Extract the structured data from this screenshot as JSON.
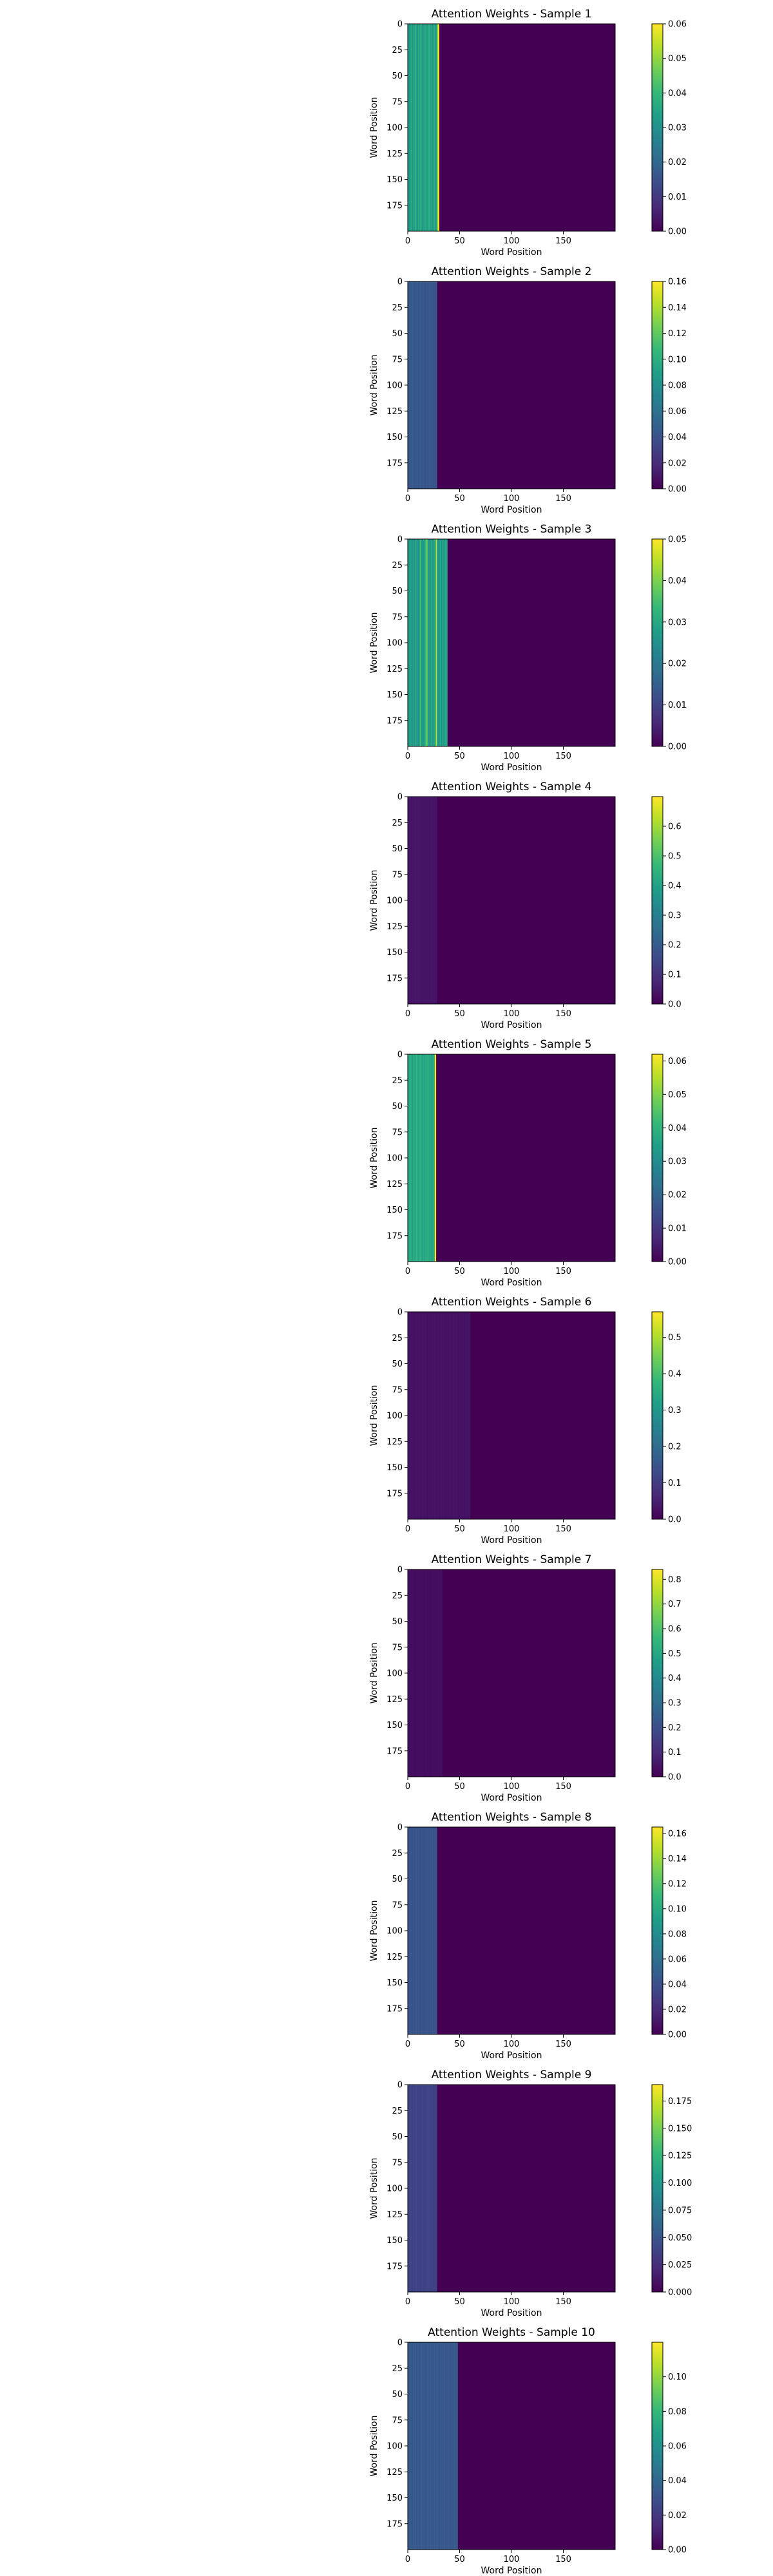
{
  "figure": {
    "colormap": "viridis",
    "colors": {
      "viridis": [
        "#440154",
        "#482878",
        "#3e4989",
        "#31688e",
        "#26828e",
        "#1f9e89",
        "#35b779",
        "#6ece58",
        "#b5de2b",
        "#fde725"
      ],
      "background": "#ffffff",
      "axis": "#000000"
    }
  },
  "chart_data": [
    {
      "type": "heatmap",
      "title": "Attention Weights - Sample 1",
      "xlabel": "Word Position",
      "ylabel": "Word Position",
      "xlim": [
        0,
        200
      ],
      "ylim": [
        200,
        0
      ],
      "xticks": [
        0,
        50,
        100,
        150
      ],
      "yticks": [
        0,
        25,
        50,
        75,
        100,
        125,
        150,
        175
      ],
      "colorbar": {
        "min": 0,
        "max": 0.06,
        "ticks": [
          "0.00",
          "0.01",
          "0.02",
          "0.03",
          "0.04",
          "0.05",
          "0.06"
        ]
      },
      "active_columns": 30,
      "column_weights": [
        0.035,
        0.03,
        0.033,
        0.038,
        0.03,
        0.036,
        0.032,
        0.04,
        0.034,
        0.031,
        0.037,
        0.033,
        0.039,
        0.035,
        0.03,
        0.036,
        0.034,
        0.038,
        0.032,
        0.035,
        0.04,
        0.033,
        0.036,
        0.03,
        0.034,
        0.037,
        0.031,
        0.035,
        0.045,
        0.06
      ]
    },
    {
      "type": "heatmap",
      "title": "Attention Weights - Sample 2",
      "xlabel": "Word Position",
      "ylabel": "Word Position",
      "xlim": [
        0,
        200
      ],
      "ylim": [
        200,
        0
      ],
      "xticks": [
        0,
        50,
        100,
        150
      ],
      "yticks": [
        0,
        25,
        50,
        75,
        100,
        125,
        150,
        175
      ],
      "colorbar": {
        "min": 0,
        "max": 0.16,
        "ticks": [
          "0.00",
          "0.02",
          "0.04",
          "0.06",
          "0.08",
          "0.10",
          "0.12",
          "0.14",
          "0.16"
        ]
      },
      "active_columns": 28,
      "column_weights": [
        0.045,
        0.04,
        0.048,
        0.042,
        0.05,
        0.044,
        0.04,
        0.046,
        0.043,
        0.047,
        0.041,
        0.045,
        0.05,
        0.042,
        0.044,
        0.046,
        0.04,
        0.043,
        0.045,
        0.041,
        0.044,
        0.046,
        0.042,
        0.045,
        0.04,
        0.043,
        0.041,
        0.044
      ]
    },
    {
      "type": "heatmap",
      "title": "Attention Weights - Sample 3",
      "xlabel": "Word Position",
      "ylabel": "Word Position",
      "xlim": [
        0,
        200
      ],
      "ylim": [
        200,
        0
      ],
      "xticks": [
        0,
        50,
        100,
        150
      ],
      "yticks": [
        0,
        25,
        50,
        75,
        100,
        125,
        150,
        175
      ],
      "colorbar": {
        "min": 0,
        "max": 0.05,
        "ticks": [
          "0.00",
          "0.01",
          "0.02",
          "0.03",
          "0.04",
          "0.05"
        ]
      },
      "active_columns": 38,
      "column_weights": [
        0.028,
        0.025,
        0.03,
        0.027,
        0.026,
        0.029,
        0.024,
        0.031,
        0.027,
        0.028,
        0.025,
        0.03,
        0.035,
        0.027,
        0.026,
        0.028,
        0.03,
        0.033,
        0.04,
        0.029,
        0.027,
        0.025,
        0.03,
        0.028,
        0.026,
        0.031,
        0.027,
        0.045,
        0.029,
        0.025,
        0.028,
        0.03,
        0.026,
        0.029,
        0.027,
        0.028,
        0.03,
        0.029
      ]
    },
    {
      "type": "heatmap",
      "title": "Attention Weights - Sample 4",
      "xlabel": "Word Position",
      "ylabel": "Word Position",
      "xlim": [
        0,
        200
      ],
      "ylim": [
        200,
        0
      ],
      "xticks": [
        0,
        50,
        100,
        150
      ],
      "yticks": [
        0,
        25,
        50,
        75,
        100,
        125,
        150,
        175
      ],
      "colorbar": {
        "min": 0,
        "max": 0.7,
        "ticks": [
          "0.0",
          "0.1",
          "0.2",
          "0.3",
          "0.4",
          "0.5",
          "0.6"
        ]
      },
      "active_columns": 28,
      "column_weights": [
        0.04,
        0.035,
        0.045,
        0.038,
        0.042,
        0.036,
        0.04,
        0.044,
        0.037,
        0.041,
        0.039,
        0.043,
        0.036,
        0.04,
        0.038,
        0.042,
        0.035,
        0.04,
        0.037,
        0.041,
        0.039,
        0.036,
        0.04,
        0.038,
        0.035,
        0.04,
        0.036,
        0.038
      ]
    },
    {
      "type": "heatmap",
      "title": "Attention Weights - Sample 5",
      "xlabel": "Word Position",
      "ylabel": "Word Position",
      "xlim": [
        0,
        200
      ],
      "ylim": [
        200,
        0
      ],
      "xticks": [
        0,
        50,
        100,
        150
      ],
      "yticks": [
        0,
        25,
        50,
        75,
        100,
        125,
        150,
        175
      ],
      "colorbar": {
        "min": 0,
        "max": 0.062,
        "ticks": [
          "0.00",
          "0.01",
          "0.02",
          "0.03",
          "0.04",
          "0.05",
          "0.06"
        ]
      },
      "active_columns": 27,
      "column_weights": [
        0.038,
        0.036,
        0.04,
        0.037,
        0.035,
        0.039,
        0.036,
        0.038,
        0.041,
        0.037,
        0.036,
        0.039,
        0.04,
        0.037,
        0.035,
        0.038,
        0.036,
        0.039,
        0.037,
        0.04,
        0.036,
        0.038,
        0.037,
        0.035,
        0.039,
        0.036,
        0.062
      ]
    },
    {
      "type": "heatmap",
      "title": "Attention Weights - Sample 6",
      "xlabel": "Word Position",
      "ylabel": "Word Position",
      "xlim": [
        0,
        200
      ],
      "ylim": [
        200,
        0
      ],
      "xticks": [
        0,
        50,
        100,
        150
      ],
      "yticks": [
        0,
        25,
        50,
        75,
        100,
        125,
        150,
        175
      ],
      "colorbar": {
        "min": 0,
        "max": 0.57,
        "ticks": [
          "0.0",
          "0.1",
          "0.2",
          "0.3",
          "0.4",
          "0.5"
        ]
      },
      "active_columns": 60,
      "column_weights": [
        0.03,
        0.025,
        0.03,
        0.028,
        0.026,
        0.03,
        0.025,
        0.028,
        0.03,
        0.026,
        0.028,
        0.03,
        0.025,
        0.027,
        0.03,
        0.026,
        0.028,
        0.03,
        0.025,
        0.027,
        0.03,
        0.026,
        0.028,
        0.03,
        0.025,
        0.027,
        0.03,
        0.026,
        0.028,
        0.03,
        0.025,
        0.027,
        0.03,
        0.026,
        0.028,
        0.03,
        0.025,
        0.027,
        0.03,
        0.026,
        0.028,
        0.03,
        0.025,
        0.027,
        0.03,
        0.026,
        0.028,
        0.03,
        0.025,
        0.027,
        0.03,
        0.026,
        0.028,
        0.03,
        0.025,
        0.027,
        0.03,
        0.026,
        0.028,
        0.03
      ]
    },
    {
      "type": "heatmap",
      "title": "Attention Weights - Sample 7",
      "xlabel": "Word Position",
      "ylabel": "Word Position",
      "xlim": [
        0,
        200
      ],
      "ylim": [
        200,
        0
      ],
      "xticks": [
        0,
        50,
        100,
        150
      ],
      "yticks": [
        0,
        25,
        50,
        75,
        100,
        125,
        150,
        175
      ],
      "colorbar": {
        "min": 0,
        "max": 0.84,
        "ticks": [
          "0.0",
          "0.1",
          "0.2",
          "0.3",
          "0.4",
          "0.5",
          "0.6",
          "0.7",
          "0.8"
        ]
      },
      "active_columns": 33,
      "column_weights": [
        0.03,
        0.028,
        0.03,
        0.027,
        0.029,
        0.03,
        0.028,
        0.027,
        0.03,
        0.029,
        0.028,
        0.03,
        0.027,
        0.029,
        0.03,
        0.028,
        0.027,
        0.03,
        0.029,
        0.028,
        0.03,
        0.027,
        0.029,
        0.03,
        0.028,
        0.027,
        0.03,
        0.029,
        0.028,
        0.03,
        0.027,
        0.029,
        0.03
      ]
    },
    {
      "type": "heatmap",
      "title": "Attention Weights - Sample 8",
      "xlabel": "Word Position",
      "ylabel": "Word Position",
      "xlim": [
        0,
        200
      ],
      "ylim": [
        200,
        0
      ],
      "xticks": [
        0,
        50,
        100,
        150
      ],
      "yticks": [
        0,
        25,
        50,
        75,
        100,
        125,
        150,
        175
      ],
      "colorbar": {
        "min": 0,
        "max": 0.165,
        "ticks": [
          "0.00",
          "0.02",
          "0.04",
          "0.06",
          "0.08",
          "0.10",
          "0.12",
          "0.14",
          "0.16"
        ]
      },
      "active_columns": 28,
      "column_weights": [
        0.045,
        0.04,
        0.047,
        0.043,
        0.041,
        0.046,
        0.042,
        0.044,
        0.048,
        0.041,
        0.045,
        0.043,
        0.04,
        0.046,
        0.042,
        0.044,
        0.041,
        0.045,
        0.043,
        0.047,
        0.042,
        0.044,
        0.041,
        0.045,
        0.043,
        0.04,
        0.044,
        0.042
      ]
    },
    {
      "type": "heatmap",
      "title": "Attention Weights - Sample 9",
      "xlabel": "Word Position",
      "ylabel": "Word Position",
      "xlim": [
        0,
        200
      ],
      "ylim": [
        200,
        0
      ],
      "xticks": [
        0,
        50,
        100,
        150
      ],
      "yticks": [
        0,
        25,
        50,
        75,
        100,
        125,
        150,
        175
      ],
      "colorbar": {
        "min": 0,
        "max": 0.19,
        "ticks": [
          "0.000",
          "0.025",
          "0.050",
          "0.075",
          "0.100",
          "0.125",
          "0.150",
          "0.175"
        ]
      },
      "active_columns": 28,
      "column_weights": [
        0.04,
        0.036,
        0.042,
        0.038,
        0.035,
        0.041,
        0.037,
        0.039,
        0.043,
        0.036,
        0.04,
        0.038,
        0.035,
        0.041,
        0.037,
        0.039,
        0.036,
        0.04,
        0.038,
        0.042,
        0.037,
        0.039,
        0.036,
        0.04,
        0.038,
        0.035,
        0.039,
        0.037
      ]
    },
    {
      "type": "heatmap",
      "title": "Attention Weights - Sample 10",
      "xlabel": "Word Position",
      "ylabel": "Word Position",
      "xlim": [
        0,
        200
      ],
      "ylim": [
        200,
        0
      ],
      "xticks": [
        0,
        50,
        100,
        150
      ],
      "yticks": [
        0,
        25,
        50,
        75,
        100,
        125,
        150,
        175
      ],
      "colorbar": {
        "min": 0,
        "max": 0.12,
        "ticks": [
          "0.00",
          "0.02",
          "0.04",
          "0.06",
          "0.08",
          "0.10"
        ]
      },
      "active_columns": 48,
      "column_weights": [
        0.035,
        0.032,
        0.036,
        0.034,
        0.031,
        0.035,
        0.033,
        0.036,
        0.032,
        0.034,
        0.035,
        0.031,
        0.034,
        0.036,
        0.032,
        0.035,
        0.033,
        0.031,
        0.034,
        0.036,
        0.032,
        0.035,
        0.033,
        0.034,
        0.031,
        0.035,
        0.032,
        0.034,
        0.036,
        0.033,
        0.031,
        0.035,
        0.032,
        0.034,
        0.033,
        0.036,
        0.031,
        0.034,
        0.032,
        0.035,
        0.033,
        0.031,
        0.034,
        0.032,
        0.035,
        0.033,
        0.034,
        0.032
      ]
    }
  ]
}
